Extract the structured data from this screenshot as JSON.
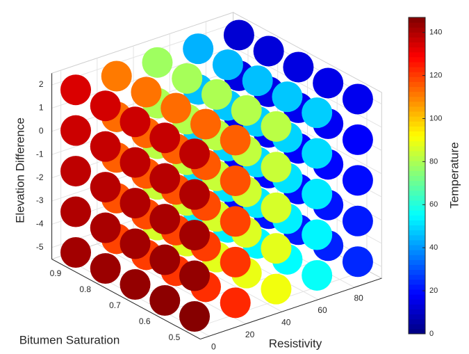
{
  "chart_data": {
    "type": "scatter3",
    "xlabel": "Resistivity",
    "ylabel": "Bitumen Saturation",
    "zlabel": "Elevation Difference",
    "colorbar_label": "Temperature",
    "xlim": [
      -5,
      95
    ],
    "ylim": [
      0.45,
      0.95
    ],
    "zlim": [
      -5.5,
      2.5
    ],
    "clim": [
      0,
      147
    ],
    "xticks": [
      0,
      20,
      40,
      60,
      80
    ],
    "yticks": [
      0.5,
      0.6,
      0.7,
      0.8,
      0.9
    ],
    "zticks": [
      -5,
      -4,
      -3,
      -2,
      -1,
      0,
      1,
      2
    ],
    "cticks": [
      0,
      20,
      40,
      60,
      80,
      100,
      120,
      140
    ],
    "colormap": "jet",
    "grid": true,
    "x": [
      0,
      0,
      0,
      0,
      0,
      0,
      0,
      0,
      0,
      0,
      0,
      0,
      0,
      0,
      0,
      0,
      0,
      0,
      0,
      0,
      0,
      0,
      0,
      0,
      0,
      22.5,
      22.5,
      22.5,
      22.5,
      22.5,
      22.5,
      22.5,
      22.5,
      22.5,
      22.5,
      22.5,
      22.5,
      22.5,
      22.5,
      22.5,
      22.5,
      22.5,
      22.5,
      22.5,
      22.5,
      22.5,
      22.5,
      22.5,
      22.5,
      22.5,
      45,
      45,
      45,
      45,
      45,
      45,
      45,
      45,
      45,
      45,
      45,
      45,
      45,
      45,
      45,
      45,
      45,
      45,
      45,
      45,
      45,
      45,
      45,
      45,
      45,
      67.5,
      67.5,
      67.5,
      67.5,
      67.5,
      67.5,
      67.5,
      67.5,
      67.5,
      67.5,
      67.5,
      67.5,
      67.5,
      67.5,
      67.5,
      67.5,
      67.5,
      67.5,
      67.5,
      67.5,
      67.5,
      67.5,
      67.5,
      67.5,
      67.5,
      90,
      90,
      90,
      90,
      90,
      90,
      90,
      90,
      90,
      90,
      90,
      90,
      90,
      90,
      90,
      90,
      90,
      90,
      90,
      90,
      90,
      90,
      90,
      90,
      90
    ],
    "y": [
      0.5,
      0.5,
      0.5,
      0.5,
      0.5,
      0.6,
      0.6,
      0.6,
      0.6,
      0.6,
      0.7,
      0.7,
      0.7,
      0.7,
      0.7,
      0.8,
      0.8,
      0.8,
      0.8,
      0.8,
      0.9,
      0.9,
      0.9,
      0.9,
      0.9,
      0.5,
      0.5,
      0.5,
      0.5,
      0.5,
      0.6,
      0.6,
      0.6,
      0.6,
      0.6,
      0.7,
      0.7,
      0.7,
      0.7,
      0.7,
      0.8,
      0.8,
      0.8,
      0.8,
      0.8,
      0.9,
      0.9,
      0.9,
      0.9,
      0.9,
      0.5,
      0.5,
      0.5,
      0.5,
      0.5,
      0.6,
      0.6,
      0.6,
      0.6,
      0.6,
      0.7,
      0.7,
      0.7,
      0.7,
      0.7,
      0.8,
      0.8,
      0.8,
      0.8,
      0.8,
      0.9,
      0.9,
      0.9,
      0.9,
      0.9,
      0.5,
      0.5,
      0.5,
      0.5,
      0.5,
      0.6,
      0.6,
      0.6,
      0.6,
      0.6,
      0.7,
      0.7,
      0.7,
      0.7,
      0.7,
      0.8,
      0.8,
      0.8,
      0.8,
      0.8,
      0.9,
      0.9,
      0.9,
      0.9,
      0.9,
      0.5,
      0.5,
      0.5,
      0.5,
      0.5,
      0.6,
      0.6,
      0.6,
      0.6,
      0.6,
      0.7,
      0.7,
      0.7,
      0.7,
      0.7,
      0.8,
      0.8,
      0.8,
      0.8,
      0.8,
      0.9,
      0.9,
      0.9,
      0.9,
      0.9
    ],
    "z": [
      -5,
      -3.25,
      -1.5,
      0.25,
      2,
      -5,
      -3.25,
      -1.5,
      0.25,
      2,
      -5,
      -3.25,
      -1.5,
      0.25,
      2,
      -5,
      -3.25,
      -1.5,
      0.25,
      2,
      -5,
      -3.25,
      -1.5,
      0.25,
      2,
      -5,
      -3.25,
      -1.5,
      0.25,
      2,
      -5,
      -3.25,
      -1.5,
      0.25,
      2,
      -5,
      -3.25,
      -1.5,
      0.25,
      2,
      -5,
      -3.25,
      -1.5,
      0.25,
      2,
      -5,
      -3.25,
      -1.5,
      0.25,
      2,
      -5,
      -3.25,
      -1.5,
      0.25,
      2,
      -5,
      -3.25,
      -1.5,
      0.25,
      2,
      -5,
      -3.25,
      -1.5,
      0.25,
      2,
      -5,
      -3.25,
      -1.5,
      0.25,
      2,
      -5,
      -3.25,
      -1.5,
      0.25,
      2,
      -5,
      -3.25,
      -1.5,
      0.25,
      2,
      -5,
      -3.25,
      -1.5,
      0.25,
      2,
      -5,
      -3.25,
      -1.5,
      0.25,
      2,
      -5,
      -3.25,
      -1.5,
      0.25,
      2,
      -5,
      -3.25,
      -1.5,
      0.25,
      2,
      -5,
      -3.25,
      -1.5,
      0.25,
      2,
      -5,
      -3.25,
      -1.5,
      0.25,
      2,
      -5,
      -3.25,
      -1.5,
      0.25,
      2,
      -5,
      -3.25,
      -1.5,
      0.25,
      2,
      -5,
      -3.25,
      -1.5,
      0.25,
      2
    ],
    "c": [
      146,
      144,
      142,
      140,
      138,
      145,
      143,
      141,
      139,
      137,
      144,
      142,
      140,
      138,
      136,
      143,
      141,
      139,
      137,
      135,
      142,
      140,
      138,
      136,
      134,
      123,
      121,
      119,
      117,
      115,
      122,
      120,
      118,
      116,
      114,
      121,
      119,
      117,
      115,
      113,
      120,
      118,
      116,
      114,
      112,
      119,
      117,
      115,
      113,
      111,
      90,
      88,
      86,
      84,
      82,
      89,
      87,
      85,
      83,
      81,
      88,
      86,
      84,
      82,
      80,
      87,
      85,
      83,
      81,
      79,
      86,
      84,
      82,
      80,
      78,
      56,
      54,
      52,
      50,
      48,
      55,
      53,
      51,
      49,
      47,
      54,
      52,
      50,
      48,
      46,
      53,
      51,
      49,
      47,
      45,
      52,
      50,
      48,
      46,
      44,
      24,
      22,
      20,
      18,
      16,
      23,
      21,
      19,
      17,
      15,
      22,
      20,
      18,
      16,
      14,
      21,
      19,
      17,
      15,
      13,
      20,
      18,
      16,
      14,
      12
    ]
  }
}
